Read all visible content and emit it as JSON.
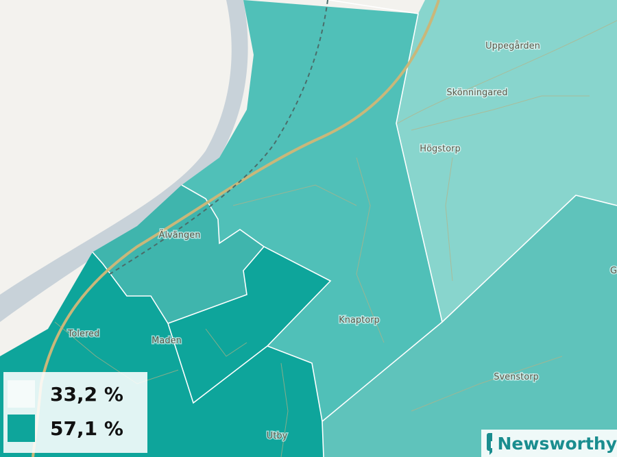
{
  "map": {
    "places": [
      "Uppegården",
      "Skönningared",
      "Högstorp",
      "Älvängen",
      "Knaptorp",
      "Tolered",
      "Maden",
      "Svenstorp",
      "Utby",
      "G"
    ]
  },
  "legend": {
    "items": [
      "33,2 %",
      "57,1 %"
    ]
  },
  "brand": "Newsworthy"
}
